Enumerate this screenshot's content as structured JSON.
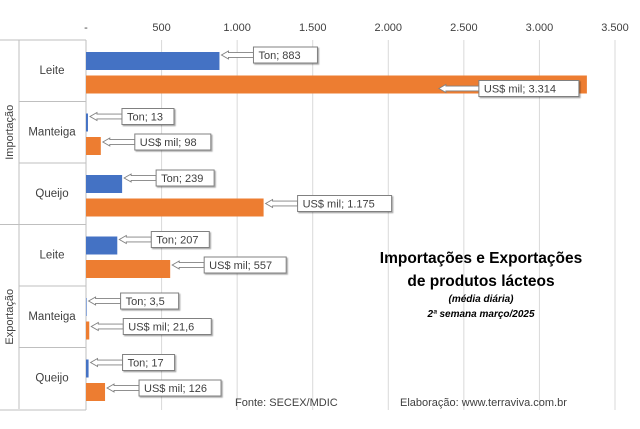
{
  "chart_data": {
    "type": "bar",
    "orientation": "horizontal",
    "title": "Importações e Exportações",
    "title_line2": "de produtos lácteos",
    "subtitle": "(média diária)",
    "period": "2ª semana março/2025",
    "source": "Fonte: SECEX/MDIC",
    "credit": "Elaboração: www.terraviva.com.br",
    "xlim": [
      0,
      3500
    ],
    "x_ticks": [
      0,
      500,
      1000,
      1500,
      2000,
      2500,
      3000,
      3500
    ],
    "x_tick_labels": [
      "-",
      "500",
      "1.000",
      "1.500",
      "2.000",
      "2.500",
      "3.000",
      "3.500"
    ],
    "grid": true,
    "colors": {
      "ton": "#4472C4",
      "usd": "#ED7D31"
    },
    "groups": [
      {
        "name": "Importação",
        "categories": [
          {
            "name": "Leite",
            "ton": 883,
            "usd": 3314,
            "ton_label": "Ton;  883",
            "usd_label": "US$ mil;  3.314"
          },
          {
            "name": "Manteiga",
            "ton": 13,
            "usd": 98,
            "ton_label": "Ton; 13",
            "usd_label": "US$ mil; 98"
          },
          {
            "name": "Queijo",
            "ton": 239,
            "usd": 1175,
            "ton_label": "Ton; 239",
            "usd_label": "US$ mil; 1.175"
          }
        ]
      },
      {
        "name": "Exportação",
        "categories": [
          {
            "name": "Leite",
            "ton": 207,
            "usd": 557,
            "ton_label": "Ton; 207",
            "usd_label": "US$ mil; 557"
          },
          {
            "name": "Manteiga",
            "ton": 3.5,
            "usd": 21.6,
            "ton_label": "Ton; 3,5",
            "usd_label": "US$ mil; 21,6"
          },
          {
            "name": "Queijo",
            "ton": 17,
            "usd": 126,
            "ton_label": "Ton; 17",
            "usd_label": "US$ mil; 126"
          }
        ]
      }
    ]
  }
}
